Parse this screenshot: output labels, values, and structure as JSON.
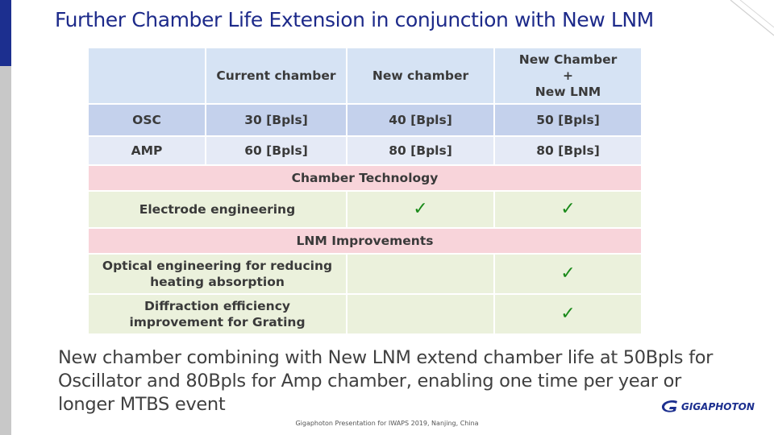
{
  "title": "Further Chamber Life Extension in conjunction with New LNM",
  "table": {
    "headers": [
      "",
      "Current chamber",
      "New chamber",
      "New Chamber\n+\nNew LNM"
    ],
    "rows": [
      {
        "label": "OSC",
        "values": [
          "30 [Bpls]",
          "40 [Bpls]",
          "50 [Bpls]"
        ]
      },
      {
        "label": "AMP",
        "values": [
          "60 [Bpls]",
          "80 [Bpls]",
          "80 [Bpls]"
        ]
      }
    ],
    "sections": [
      {
        "title": "Chamber Technology",
        "items": [
          {
            "label": "Electrode engineering",
            "new_chamber": "✓",
            "new_chamber_lnm": "✓"
          }
        ]
      },
      {
        "title": "LNM Improvements",
        "items": [
          {
            "label": "Optical engineering for reducing\nheating absorption",
            "new_chamber": "",
            "new_chamber_lnm": "✓"
          },
          {
            "label": "Diffraction efficiency\nimprovement for Grating",
            "new_chamber": "",
            "new_chamber_lnm": "✓"
          }
        ]
      }
    ]
  },
  "body_text": "New chamber combining with New LNM extend chamber life at 50Bpls for Oscillator and 80Bpls for Amp chamber, enabling one time per year or longer MTBS event",
  "footer": "Gigaphoton Presentation for IWAPS 2019, Nanjing, China",
  "logo": {
    "text": "GIGAPHOTON",
    "icon": "gigaphoton-logo-icon"
  },
  "colors": {
    "title": "#1d2a8a",
    "brand": "#1c2f8f",
    "check": "#1a8a1a",
    "section": "#f8d4da",
    "feature": "#ebf1dc"
  }
}
